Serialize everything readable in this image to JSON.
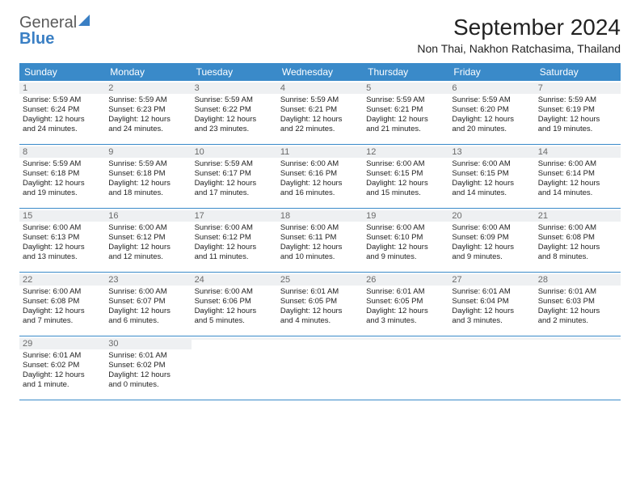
{
  "logo": {
    "main": "General",
    "accent": "Blue"
  },
  "title": "September 2024",
  "location": "Non Thai, Nakhon Ratchasima, Thailand",
  "colors": {
    "header_bg": "#3a8ac9",
    "header_text": "#ffffff",
    "daynum_bg": "#eef0f2",
    "daynum_text": "#6a6a6a",
    "body_text": "#222222",
    "border": "#3a8ac9",
    "logo_gray": "#5a5a5a",
    "logo_blue": "#3a7fc4"
  },
  "typography": {
    "title_fontsize": 28,
    "location_fontsize": 14,
    "dow_fontsize": 12,
    "daynum_fontsize": 11,
    "info_fontsize": 9.5
  },
  "days_of_week": [
    "Sunday",
    "Monday",
    "Tuesday",
    "Wednesday",
    "Thursday",
    "Friday",
    "Saturday"
  ],
  "weeks": [
    [
      {
        "n": "1",
        "sr": "Sunrise: 5:59 AM",
        "ss": "Sunset: 6:24 PM",
        "d1": "Daylight: 12 hours",
        "d2": "and 24 minutes."
      },
      {
        "n": "2",
        "sr": "Sunrise: 5:59 AM",
        "ss": "Sunset: 6:23 PM",
        "d1": "Daylight: 12 hours",
        "d2": "and 24 minutes."
      },
      {
        "n": "3",
        "sr": "Sunrise: 5:59 AM",
        "ss": "Sunset: 6:22 PM",
        "d1": "Daylight: 12 hours",
        "d2": "and 23 minutes."
      },
      {
        "n": "4",
        "sr": "Sunrise: 5:59 AM",
        "ss": "Sunset: 6:21 PM",
        "d1": "Daylight: 12 hours",
        "d2": "and 22 minutes."
      },
      {
        "n": "5",
        "sr": "Sunrise: 5:59 AM",
        "ss": "Sunset: 6:21 PM",
        "d1": "Daylight: 12 hours",
        "d2": "and 21 minutes."
      },
      {
        "n": "6",
        "sr": "Sunrise: 5:59 AM",
        "ss": "Sunset: 6:20 PM",
        "d1": "Daylight: 12 hours",
        "d2": "and 20 minutes."
      },
      {
        "n": "7",
        "sr": "Sunrise: 5:59 AM",
        "ss": "Sunset: 6:19 PM",
        "d1": "Daylight: 12 hours",
        "d2": "and 19 minutes."
      }
    ],
    [
      {
        "n": "8",
        "sr": "Sunrise: 5:59 AM",
        "ss": "Sunset: 6:18 PM",
        "d1": "Daylight: 12 hours",
        "d2": "and 19 minutes."
      },
      {
        "n": "9",
        "sr": "Sunrise: 5:59 AM",
        "ss": "Sunset: 6:18 PM",
        "d1": "Daylight: 12 hours",
        "d2": "and 18 minutes."
      },
      {
        "n": "10",
        "sr": "Sunrise: 5:59 AM",
        "ss": "Sunset: 6:17 PM",
        "d1": "Daylight: 12 hours",
        "d2": "and 17 minutes."
      },
      {
        "n": "11",
        "sr": "Sunrise: 6:00 AM",
        "ss": "Sunset: 6:16 PM",
        "d1": "Daylight: 12 hours",
        "d2": "and 16 minutes."
      },
      {
        "n": "12",
        "sr": "Sunrise: 6:00 AM",
        "ss": "Sunset: 6:15 PM",
        "d1": "Daylight: 12 hours",
        "d2": "and 15 minutes."
      },
      {
        "n": "13",
        "sr": "Sunrise: 6:00 AM",
        "ss": "Sunset: 6:15 PM",
        "d1": "Daylight: 12 hours",
        "d2": "and 14 minutes."
      },
      {
        "n": "14",
        "sr": "Sunrise: 6:00 AM",
        "ss": "Sunset: 6:14 PM",
        "d1": "Daylight: 12 hours",
        "d2": "and 14 minutes."
      }
    ],
    [
      {
        "n": "15",
        "sr": "Sunrise: 6:00 AM",
        "ss": "Sunset: 6:13 PM",
        "d1": "Daylight: 12 hours",
        "d2": "and 13 minutes."
      },
      {
        "n": "16",
        "sr": "Sunrise: 6:00 AM",
        "ss": "Sunset: 6:12 PM",
        "d1": "Daylight: 12 hours",
        "d2": "and 12 minutes."
      },
      {
        "n": "17",
        "sr": "Sunrise: 6:00 AM",
        "ss": "Sunset: 6:12 PM",
        "d1": "Daylight: 12 hours",
        "d2": "and 11 minutes."
      },
      {
        "n": "18",
        "sr": "Sunrise: 6:00 AM",
        "ss": "Sunset: 6:11 PM",
        "d1": "Daylight: 12 hours",
        "d2": "and 10 minutes."
      },
      {
        "n": "19",
        "sr": "Sunrise: 6:00 AM",
        "ss": "Sunset: 6:10 PM",
        "d1": "Daylight: 12 hours",
        "d2": "and 9 minutes."
      },
      {
        "n": "20",
        "sr": "Sunrise: 6:00 AM",
        "ss": "Sunset: 6:09 PM",
        "d1": "Daylight: 12 hours",
        "d2": "and 9 minutes."
      },
      {
        "n": "21",
        "sr": "Sunrise: 6:00 AM",
        "ss": "Sunset: 6:08 PM",
        "d1": "Daylight: 12 hours",
        "d2": "and 8 minutes."
      }
    ],
    [
      {
        "n": "22",
        "sr": "Sunrise: 6:00 AM",
        "ss": "Sunset: 6:08 PM",
        "d1": "Daylight: 12 hours",
        "d2": "and 7 minutes."
      },
      {
        "n": "23",
        "sr": "Sunrise: 6:00 AM",
        "ss": "Sunset: 6:07 PM",
        "d1": "Daylight: 12 hours",
        "d2": "and 6 minutes."
      },
      {
        "n": "24",
        "sr": "Sunrise: 6:00 AM",
        "ss": "Sunset: 6:06 PM",
        "d1": "Daylight: 12 hours",
        "d2": "and 5 minutes."
      },
      {
        "n": "25",
        "sr": "Sunrise: 6:01 AM",
        "ss": "Sunset: 6:05 PM",
        "d1": "Daylight: 12 hours",
        "d2": "and 4 minutes."
      },
      {
        "n": "26",
        "sr": "Sunrise: 6:01 AM",
        "ss": "Sunset: 6:05 PM",
        "d1": "Daylight: 12 hours",
        "d2": "and 3 minutes."
      },
      {
        "n": "27",
        "sr": "Sunrise: 6:01 AM",
        "ss": "Sunset: 6:04 PM",
        "d1": "Daylight: 12 hours",
        "d2": "and 3 minutes."
      },
      {
        "n": "28",
        "sr": "Sunrise: 6:01 AM",
        "ss": "Sunset: 6:03 PM",
        "d1": "Daylight: 12 hours",
        "d2": "and 2 minutes."
      }
    ],
    [
      {
        "n": "29",
        "sr": "Sunrise: 6:01 AM",
        "ss": "Sunset: 6:02 PM",
        "d1": "Daylight: 12 hours",
        "d2": "and 1 minute."
      },
      {
        "n": "30",
        "sr": "Sunrise: 6:01 AM",
        "ss": "Sunset: 6:02 PM",
        "d1": "Daylight: 12 hours",
        "d2": "and 0 minutes."
      },
      {
        "n": "",
        "sr": "",
        "ss": "",
        "d1": "",
        "d2": "",
        "empty": true
      },
      {
        "n": "",
        "sr": "",
        "ss": "",
        "d1": "",
        "d2": "",
        "empty": true
      },
      {
        "n": "",
        "sr": "",
        "ss": "",
        "d1": "",
        "d2": "",
        "empty": true
      },
      {
        "n": "",
        "sr": "",
        "ss": "",
        "d1": "",
        "d2": "",
        "empty": true
      },
      {
        "n": "",
        "sr": "",
        "ss": "",
        "d1": "",
        "d2": "",
        "empty": true
      }
    ]
  ]
}
